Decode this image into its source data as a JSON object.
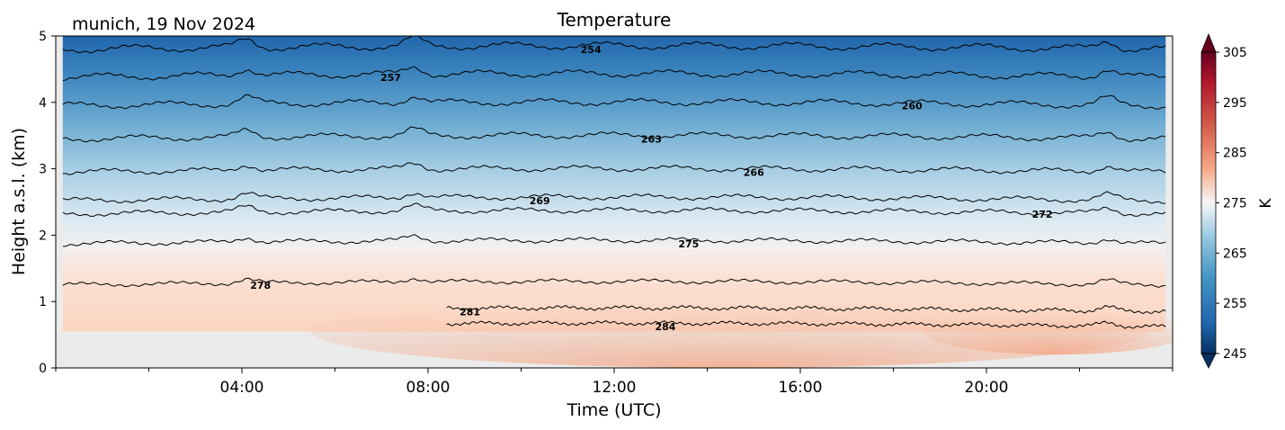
{
  "chart_data": {
    "type": "contour",
    "title": "Temperature",
    "subtitle": "munich, 19 Nov 2024",
    "xlabel": "Time (UTC)",
    "ylabel": "Height a.s.l. (km)",
    "xlim": [
      0,
      24
    ],
    "ylim": [
      0,
      5
    ],
    "x_ticks": [
      {
        "value": 4,
        "label": "04:00"
      },
      {
        "value": 8,
        "label": "08:00"
      },
      {
        "value": 12,
        "label": "12:00"
      },
      {
        "value": 16,
        "label": "16:00"
      },
      {
        "value": 20,
        "label": "20:00"
      }
    ],
    "y_ticks": [
      {
        "value": 0,
        "label": "0"
      },
      {
        "value": 1,
        "label": "1"
      },
      {
        "value": 2,
        "label": "2"
      },
      {
        "value": 3,
        "label": "3"
      },
      {
        "value": 4,
        "label": "4"
      },
      {
        "value": 5,
        "label": "5"
      }
    ],
    "data_x_range": [
      0.15,
      23.85
    ],
    "data_bottom_km": 0.55,
    "no_data_color": "#ebebeb",
    "colormap": "RdBu_r",
    "colorbar": {
      "label": "K",
      "range": [
        245,
        305
      ],
      "ticks": [
        {
          "value": 245,
          "label": "245"
        },
        {
          "value": 255,
          "label": "255"
        },
        {
          "value": 265,
          "label": "265"
        },
        {
          "value": 275,
          "label": "275"
        },
        {
          "value": 285,
          "label": "285"
        },
        {
          "value": 295,
          "label": "295"
        },
        {
          "value": 305,
          "label": "305"
        }
      ],
      "extend": "both"
    },
    "contour_lines": [
      {
        "level": 254,
        "label": "254",
        "height_km": 4.8,
        "label_x": 11.5
      },
      {
        "level": 257,
        "label": "257",
        "height_km": 4.38,
        "label_x": 7.2
      },
      {
        "level": 260,
        "label": "260",
        "height_km": 3.95,
        "label_x": 18.4
      },
      {
        "level": 263,
        "label": "263",
        "height_km": 3.45,
        "label_x": 12.8
      },
      {
        "level": 266,
        "label": "266",
        "height_km": 2.95,
        "label_x": 15.0
      },
      {
        "level": 269,
        "label": "269",
        "height_km": 2.52,
        "label_x": 10.4
      },
      {
        "level": 272,
        "label": "272",
        "height_km": 2.32,
        "label_x": 21.2
      },
      {
        "level": 275,
        "label": "275",
        "height_km": 1.87,
        "label_x": 13.6
      },
      {
        "level": 278,
        "label": "278",
        "height_km": 1.25,
        "label_x": 4.4
      },
      {
        "level": 281,
        "label": "281",
        "height_km": 0.85,
        "label_x": 8.9
      },
      {
        "level": 284,
        "label": "284",
        "height_km": 0.62,
        "label_x": 13.1
      }
    ]
  }
}
